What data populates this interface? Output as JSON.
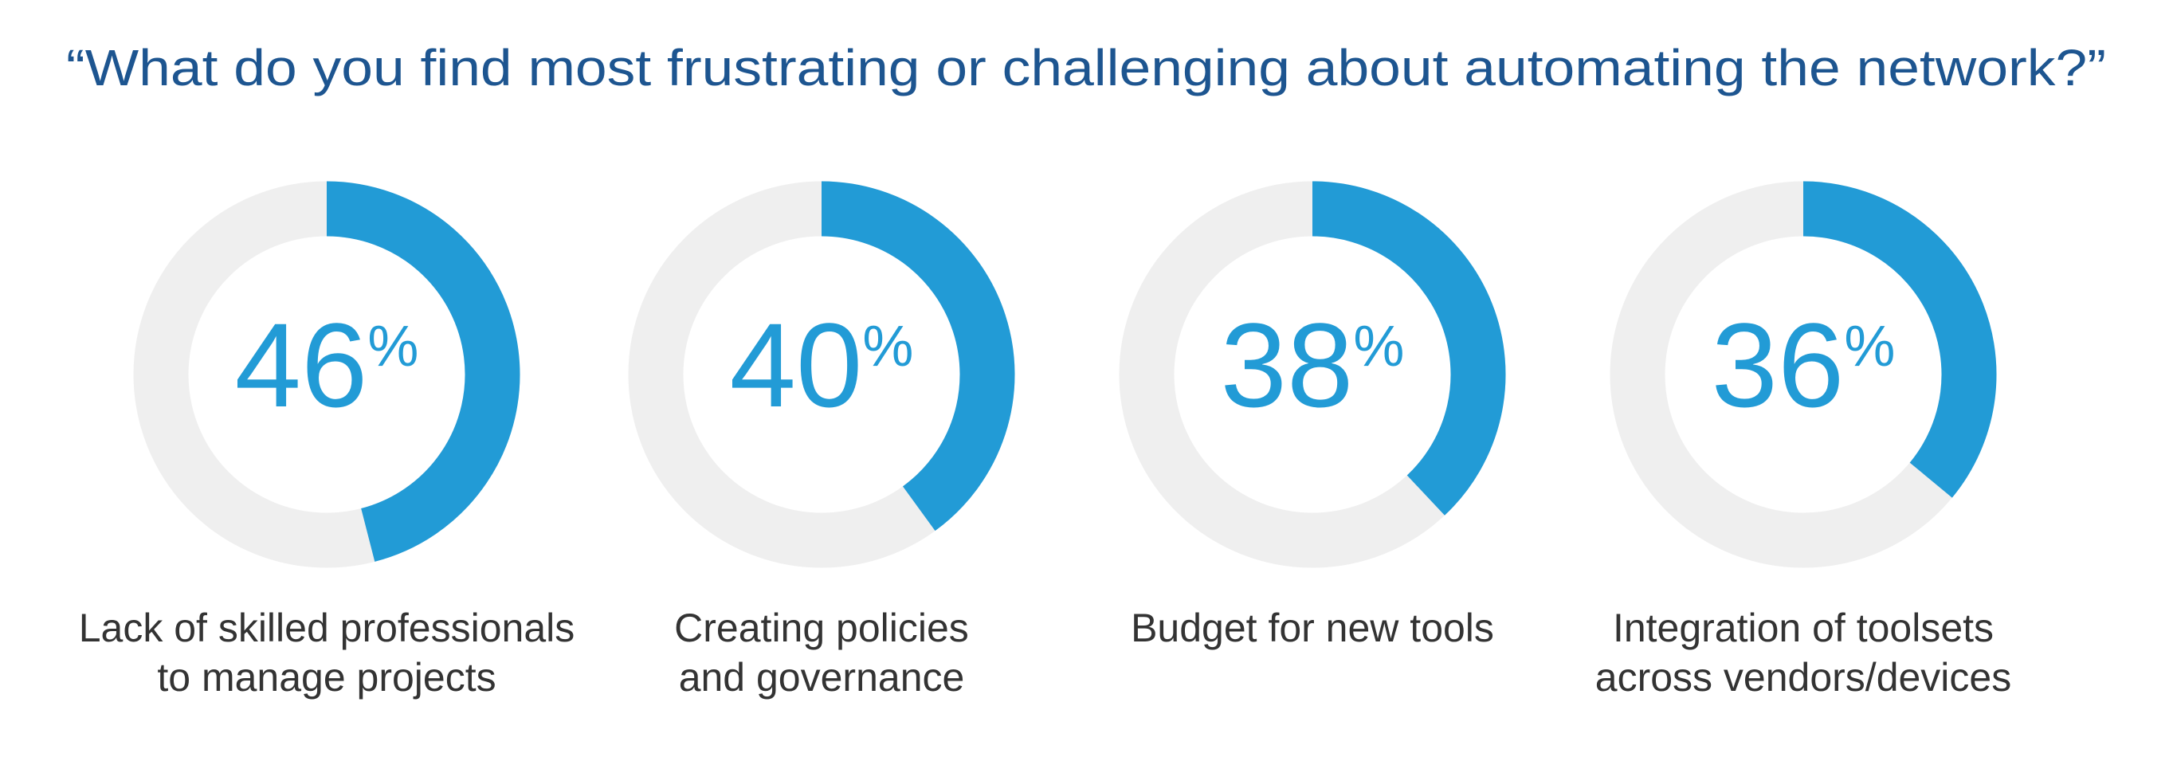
{
  "title": "“What do you find most frustrating or challenging about automating the network?”",
  "chart_data": [
    {
      "type": "donut",
      "values": [
        46
      ],
      "value_labels": [
        "46%"
      ],
      "color": "#229bd6",
      "track_color": "#efefef",
      "label": [
        "Lack of skilled professionals",
        "to manage projects"
      ]
    },
    {
      "type": "donut",
      "values": [
        40
      ],
      "value_labels": [
        "40%"
      ],
      "color": "#229bd6",
      "track_color": "#efefef",
      "label": [
        "Creating policies",
        "and governance"
      ]
    },
    {
      "type": "donut",
      "values": [
        38
      ],
      "value_labels": [
        "38%"
      ],
      "color": "#229bd6",
      "track_color": "#efefef",
      "label": [
        "Budget for new tools"
      ]
    },
    {
      "type": "donut",
      "values": [
        36
      ],
      "value_labels": [
        "36%"
      ],
      "color": "#229bd6",
      "track_color": "#efefef",
      "label": [
        "Integration of toolsets",
        "across vendors/devices"
      ]
    }
  ]
}
